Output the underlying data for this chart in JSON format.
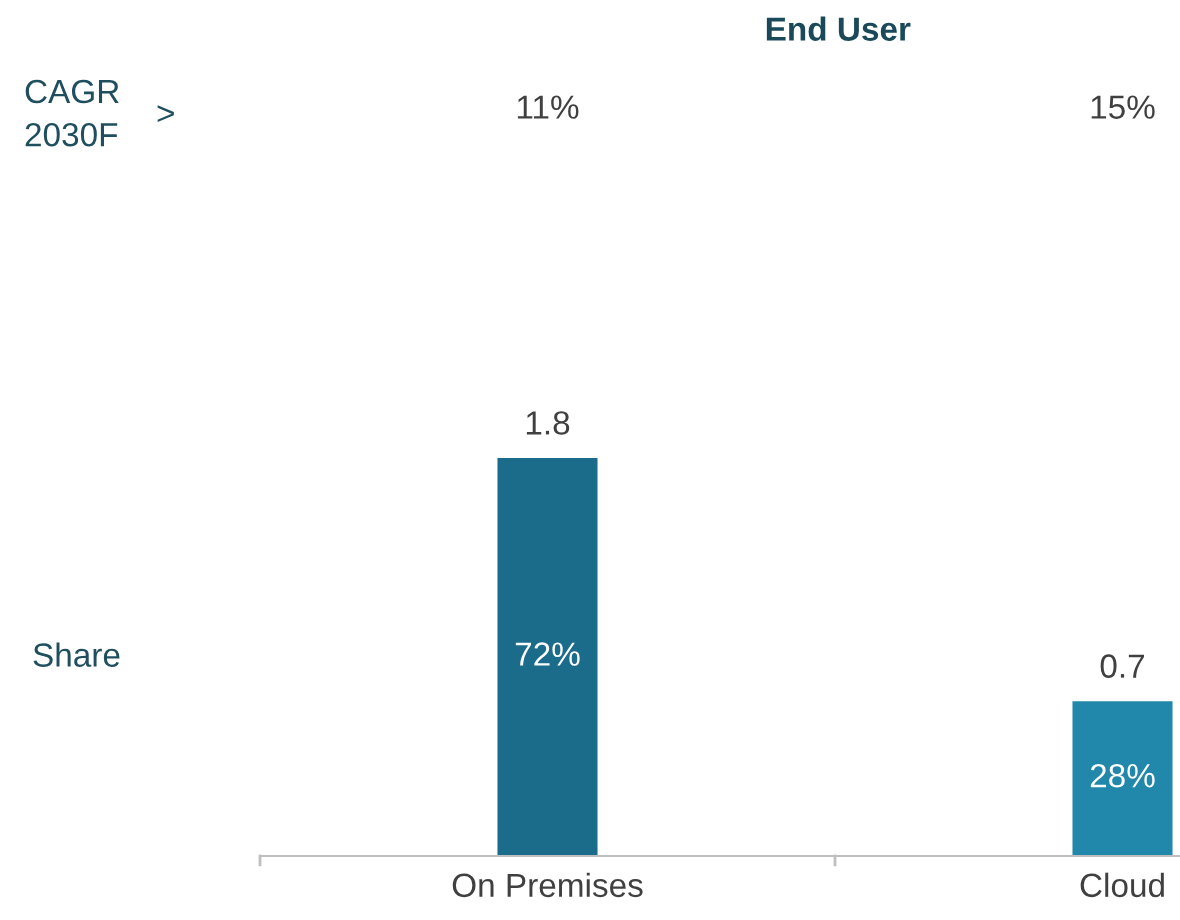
{
  "chart_data": {
    "type": "bar",
    "title": "End User",
    "categories": [
      "On Premises",
      "Cloud"
    ],
    "values": [
      1.8,
      0.7
    ],
    "colors": [
      "#1b6b8a",
      "#2187ab"
    ],
    "data_labels": true,
    "annotations": [
      "72%",
      "28%",
      "11%",
      "15%",
      "CAGR\n2030F",
      ">",
      "Share"
    ]
  }
}
